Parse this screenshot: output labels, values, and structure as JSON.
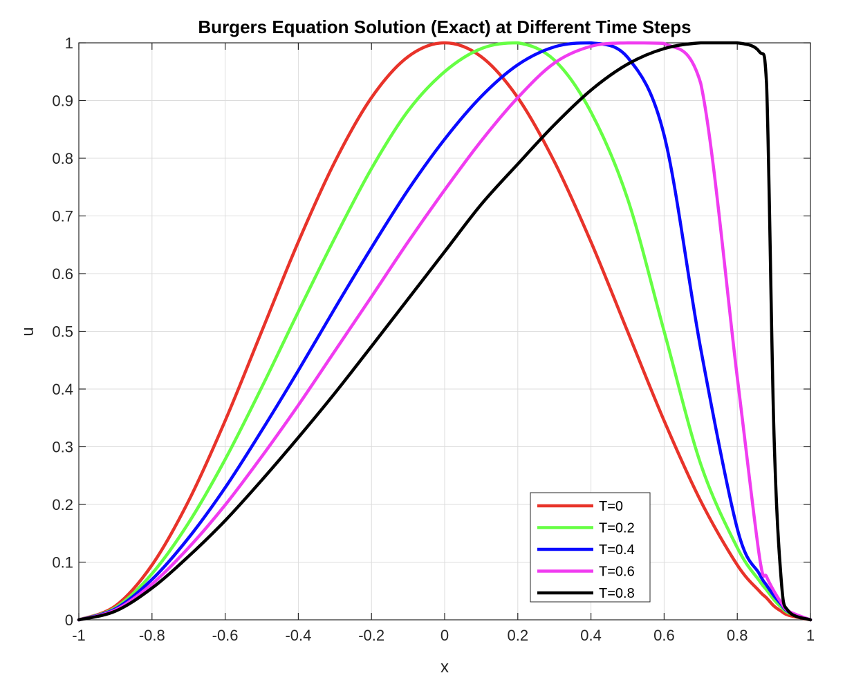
{
  "chart_data": {
    "type": "line",
    "title": "Burgers Equation Solution (Exact) at Different Time Steps",
    "xlabel": "x",
    "ylabel": "u",
    "xlim": [
      -1,
      1
    ],
    "ylim": [
      0,
      1
    ],
    "xticks": [
      "-1",
      "-0.8",
      "-0.6",
      "-0.4",
      "-0.2",
      "0",
      "0.2",
      "0.4",
      "0.6",
      "0.8",
      "1"
    ],
    "yticks": [
      "0",
      "0.1",
      "0.2",
      "0.3",
      "0.4",
      "0.5",
      "0.6",
      "0.7",
      "0.8",
      "0.9",
      "1"
    ],
    "grid": true,
    "legend_position": "bottom-right",
    "x": [
      -1.0,
      -0.9,
      -0.8,
      -0.7,
      -0.6,
      -0.5,
      -0.4,
      -0.3,
      -0.2,
      -0.1,
      0.0,
      0.1,
      0.2,
      0.3,
      0.4,
      0.5,
      0.6,
      0.7,
      0.8,
      0.86,
      0.88,
      0.9,
      0.92,
      0.94,
      1.0
    ],
    "series": [
      {
        "name": "T=0",
        "color": "#e8332a",
        "values": [
          0.0,
          0.024,
          0.095,
          0.206,
          0.345,
          0.5,
          0.655,
          0.794,
          0.905,
          0.976,
          1.0,
          0.976,
          0.905,
          0.794,
          0.655,
          0.5,
          0.345,
          0.206,
          0.095,
          0.05,
          0.038,
          0.024,
          0.015,
          0.008,
          0.0
        ]
      },
      {
        "name": "T=0.2",
        "color": "#66ff44",
        "values": [
          0.0,
          0.021,
          0.08,
          0.168,
          0.278,
          0.403,
          0.534,
          0.662,
          0.782,
          0.882,
          0.95,
          0.99,
          1.0,
          0.97,
          0.88,
          0.73,
          0.5,
          0.27,
          0.125,
          0.068,
          0.052,
          0.035,
          0.022,
          0.012,
          0.0
        ]
      },
      {
        "name": "T=0.4",
        "color": "#0a0aff",
        "values": [
          0.0,
          0.019,
          0.07,
          0.142,
          0.229,
          0.328,
          0.432,
          0.54,
          0.645,
          0.745,
          0.833,
          0.907,
          0.962,
          0.993,
          1.0,
          0.975,
          0.84,
          0.47,
          0.158,
          0.08,
          0.06,
          0.042,
          0.027,
          0.014,
          0.0
        ]
      },
      {
        "name": "T=0.6",
        "color": "#f03cf0",
        "values": [
          0.0,
          0.017,
          0.062,
          0.125,
          0.199,
          0.283,
          0.372,
          0.466,
          0.56,
          0.655,
          0.745,
          0.83,
          0.905,
          0.965,
          0.994,
          1.0,
          0.999,
          0.93,
          0.42,
          0.112,
          0.075,
          0.05,
          0.03,
          0.015,
          0.0
        ]
      },
      {
        "name": "T=0.8",
        "color": "#000000",
        "values": [
          0.0,
          0.015,
          0.055,
          0.11,
          0.172,
          0.242,
          0.316,
          0.393,
          0.474,
          0.556,
          0.638,
          0.72,
          0.79,
          0.858,
          0.918,
          0.963,
          0.99,
          1.0,
          1.0,
          0.985,
          0.93,
          0.33,
          0.07,
          0.015,
          0.0
        ]
      }
    ]
  }
}
